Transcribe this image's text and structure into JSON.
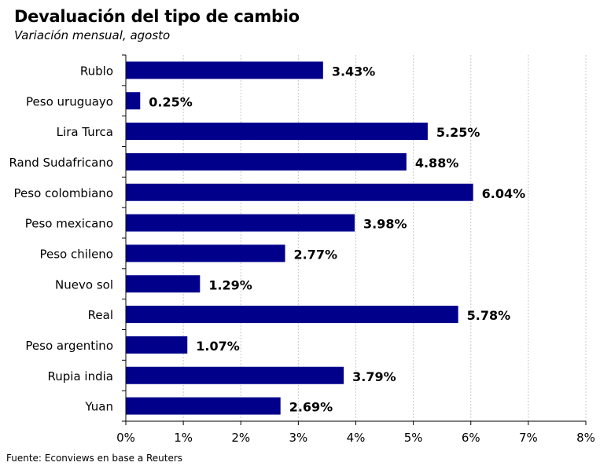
{
  "chart_data": {
    "type": "bar",
    "orientation": "horizontal",
    "title": "Devaluación del tipo de cambio",
    "subtitle": "Variación mensual, agosto",
    "source": "Fuente: Econviews en base a Reuters",
    "categories": [
      "Rublo",
      "Peso uruguayo",
      "Lira Turca",
      "Rand Sudafricano",
      "Peso colombiano",
      "Peso mexicano",
      "Peso chileno",
      "Nuevo sol",
      "Real",
      "Peso argentino",
      "Rupia india",
      "Yuan"
    ],
    "values": [
      3.43,
      0.25,
      5.25,
      4.88,
      6.04,
      3.98,
      2.77,
      1.29,
      5.78,
      1.07,
      3.79,
      2.69
    ],
    "value_labels": [
      "3.43%",
      "0.25%",
      "5.25%",
      "4.88%",
      "6.04%",
      "3.98%",
      "2.77%",
      "1.29%",
      "5.78%",
      "1.07%",
      "3.79%",
      "2.69%"
    ],
    "xlim": [
      0,
      8
    ],
    "xticks": [
      "0%",
      "1%",
      "2%",
      "3%",
      "4%",
      "5%",
      "6%",
      "7%",
      "8%"
    ],
    "grid": true,
    "legend": "none",
    "bar_color": "#00008B"
  }
}
